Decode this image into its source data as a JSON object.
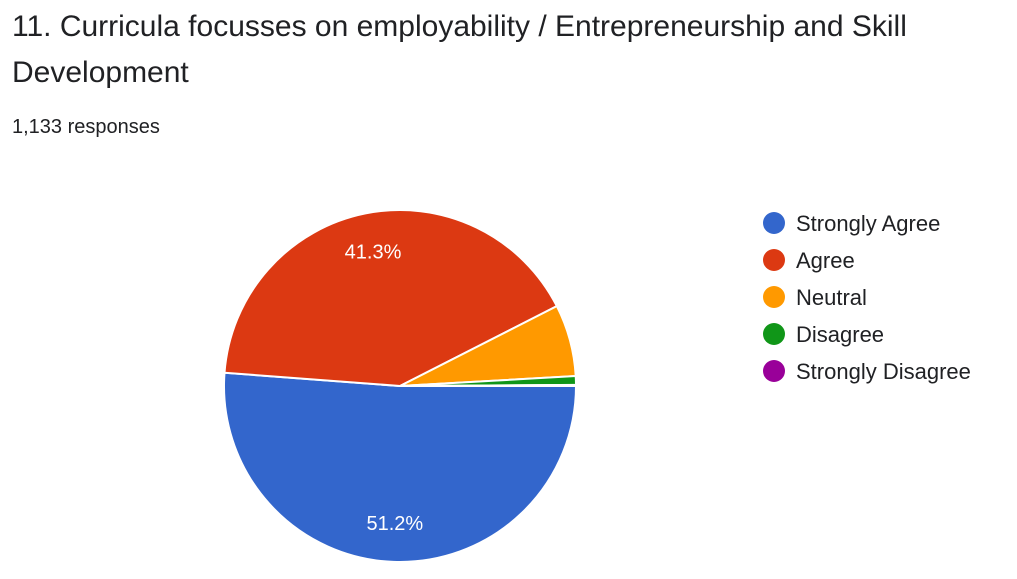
{
  "question": {
    "title": "11. Curricula focusses on employability / Entrepreneurship and Skill Development",
    "responses": "1,133 responses"
  },
  "chart_data": {
    "type": "pie",
    "categories": [
      "Strongly Agree",
      "Agree",
      "Neutral",
      "Disagree",
      "Strongly Disagree"
    ],
    "values": [
      51.2,
      41.3,
      6.6,
      0.8,
      0.1
    ],
    "data_labels": [
      "51.2%",
      "41.3%",
      "",
      "",
      ""
    ],
    "colors": [
      "#3366cc",
      "#dc3912",
      "#ff9900",
      "#109618",
      "#990099"
    ],
    "legend_position": "right"
  }
}
